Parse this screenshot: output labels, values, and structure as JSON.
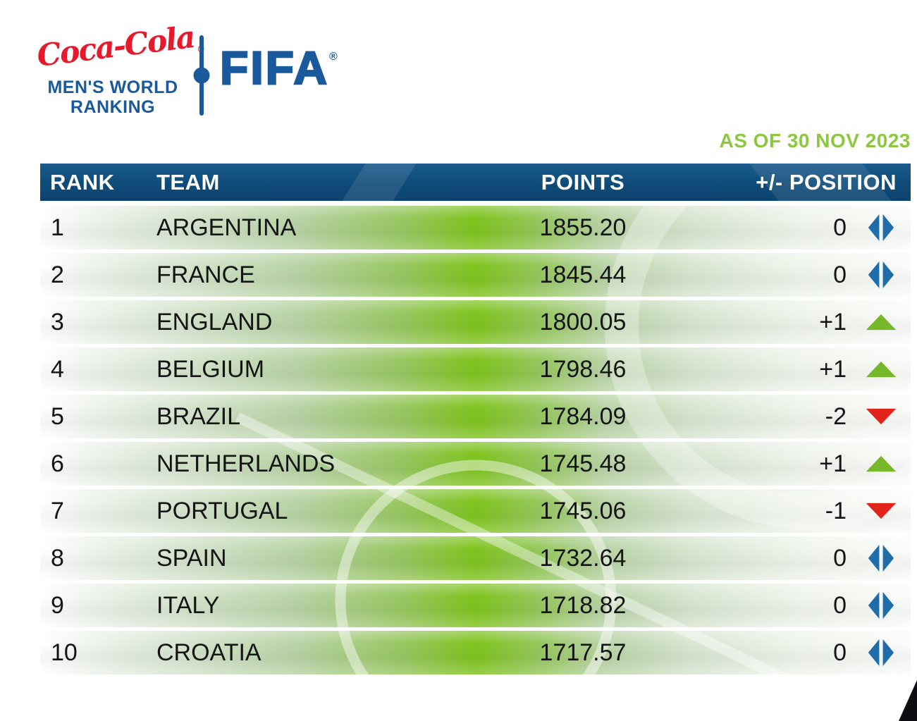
{
  "logo": {
    "coca_cola": "Coca-Cola",
    "registered": "®",
    "subtitle_line1": "MEN'S WORLD",
    "subtitle_line2": "RANKING",
    "fifa": "FIFA"
  },
  "as_of": "AS OF 30 NOV 2023",
  "table": {
    "headers": {
      "rank": "RANK",
      "team": "TEAM",
      "points": "POINTS",
      "position": "+/- POSITION"
    },
    "rows": [
      {
        "rank": "1",
        "team": "ARGENTINA",
        "points": "1855.20",
        "change": "0",
        "direction": "same"
      },
      {
        "rank": "2",
        "team": "FRANCE",
        "points": "1845.44",
        "change": "0",
        "direction": "same"
      },
      {
        "rank": "3",
        "team": "ENGLAND",
        "points": "1800.05",
        "change": "+1",
        "direction": "up"
      },
      {
        "rank": "4",
        "team": "BELGIUM",
        "points": "1798.46",
        "change": "+1",
        "direction": "up"
      },
      {
        "rank": "5",
        "team": "BRAZIL",
        "points": "1784.09",
        "change": "-2",
        "direction": "down"
      },
      {
        "rank": "6",
        "team": "NETHERLANDS",
        "points": "1745.48",
        "change": "+1",
        "direction": "up"
      },
      {
        "rank": "7",
        "team": "PORTUGAL",
        "points": "1745.06",
        "change": "-1",
        "direction": "down"
      },
      {
        "rank": "8",
        "team": "SPAIN",
        "points": "1732.64",
        "change": "0",
        "direction": "same"
      },
      {
        "rank": "9",
        "team": "ITALY",
        "points": "1718.82",
        "change": "0",
        "direction": "same"
      },
      {
        "rank": "10",
        "team": "CROATIA",
        "points": "1717.57",
        "change": "0",
        "direction": "same"
      }
    ]
  },
  "colors": {
    "header_blue": "#0f4b78",
    "fifa_blue": "#1a5a9c",
    "coca_cola_red": "#e8192c",
    "as_of_green": "#8dc63f",
    "pitch_green": "#7fc41f",
    "up_arrow_green": "#76b82a",
    "down_arrow_red": "#e2231b",
    "no_change_blue": "#1e6ca8",
    "row_text": "#141414"
  },
  "chart_data": {
    "type": "table",
    "title": "Coca-Cola FIFA Men's World Ranking",
    "subtitle": "AS OF 30 NOV 2023",
    "columns": [
      "RANK",
      "TEAM",
      "POINTS",
      "+/- POSITION"
    ],
    "rows": [
      [
        1,
        "ARGENTINA",
        1855.2,
        "0"
      ],
      [
        2,
        "FRANCE",
        1845.44,
        "0"
      ],
      [
        3,
        "ENGLAND",
        1800.05,
        "+1"
      ],
      [
        4,
        "BELGIUM",
        1798.46,
        "+1"
      ],
      [
        5,
        "BRAZIL",
        1784.09,
        "-2"
      ],
      [
        6,
        "NETHERLANDS",
        1745.48,
        "+1"
      ],
      [
        7,
        "PORTUGAL",
        1745.06,
        "-1"
      ],
      [
        8,
        "SPAIN",
        1732.64,
        "0"
      ],
      [
        9,
        "ITALY",
        1718.82,
        "0"
      ],
      [
        10,
        "CROATIA",
        1717.57,
        "0"
      ]
    ]
  }
}
